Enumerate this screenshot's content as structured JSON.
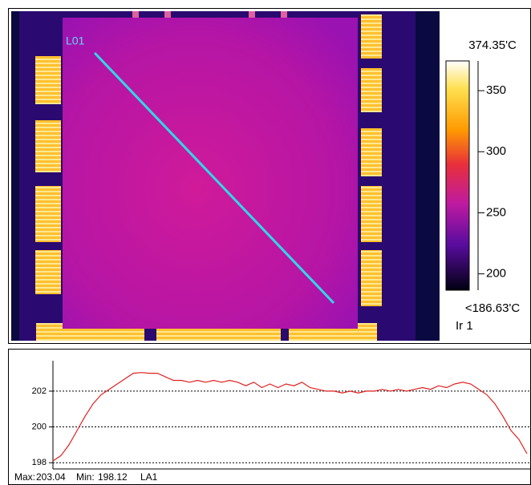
{
  "image": {
    "line_label": "L01"
  },
  "colorbar": {
    "max": {
      "value": 374.35,
      "label": "374.35'C"
    },
    "min": {
      "value": 186.63,
      "label": "<186.63'C"
    },
    "ticks": [
      200,
      250,
      300,
      350
    ],
    "source": "Ir 1"
  },
  "chart_data": {
    "type": "line",
    "color": "#e02020",
    "grid": true,
    "x": [
      0,
      1,
      2,
      3,
      4,
      5,
      6,
      7,
      8,
      9,
      10,
      11,
      12,
      13,
      14,
      15,
      16,
      17,
      18,
      19,
      20,
      21,
      22,
      23,
      24,
      25,
      26,
      27,
      28,
      29,
      30,
      31,
      32,
      33,
      34,
      35,
      36,
      37,
      38,
      39,
      40,
      41,
      42,
      43,
      44,
      45,
      46,
      47,
      48,
      49,
      50,
      51,
      52,
      53,
      54,
      55,
      56,
      57,
      58,
      59
    ],
    "values": [
      198.1,
      198.4,
      199.0,
      199.8,
      200.6,
      201.3,
      201.8,
      202.1,
      202.4,
      202.7,
      203.0,
      203.04,
      203.0,
      203.0,
      202.8,
      202.6,
      202.6,
      202.5,
      202.6,
      202.5,
      202.6,
      202.5,
      202.6,
      202.5,
      202.3,
      202.5,
      202.2,
      202.4,
      202.2,
      202.4,
      202.3,
      202.5,
      202.2,
      202.1,
      202.0,
      202.0,
      201.9,
      202.0,
      201.9,
      202.0,
      202.0,
      202.1,
      202.0,
      202.1,
      202.0,
      202.1,
      202.2,
      202.1,
      202.3,
      202.2,
      202.4,
      202.5,
      202.4,
      202.1,
      201.8,
      201.3,
      200.6,
      199.8,
      199.3,
      198.5
    ],
    "xlim": [
      0,
      59.5
    ],
    "ylim": [
      197.65,
      203.7
    ],
    "yticks": [
      198,
      200,
      202
    ]
  },
  "footer": {
    "max_label": "Max:",
    "max": 203.04,
    "min_label": "Min:",
    "min": 198.12,
    "profile": "LA1"
  }
}
